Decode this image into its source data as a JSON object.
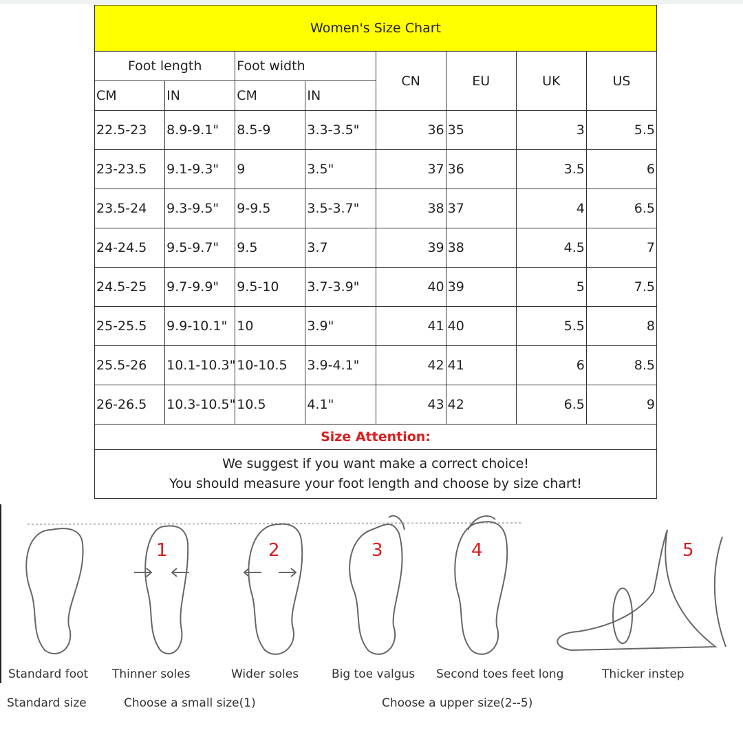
{
  "title": "Women's Size Chart",
  "headers": {
    "foot_length": "Foot length",
    "foot_width": "Foot width",
    "cn": "CN",
    "eu": "EU",
    "uk": "UK",
    "us": "US",
    "cm1": "CM",
    "in1": "IN",
    "cm2": "CM",
    "in2": "IN"
  },
  "rows": [
    [
      "22.5-23",
      "8.9-9.1\"",
      "8.5-9",
      "3.3-3.5\"",
      "36",
      "35",
      "3",
      "5.5"
    ],
    [
      "23-23.5",
      "9.1-9.3\"",
      "9",
      "3.5\"",
      "37",
      "36",
      "3.5",
      "6"
    ],
    [
      "23.5-24",
      "9.3-9.5\"",
      "9-9.5",
      "3.5-3.7\"",
      "38",
      "37",
      "4",
      "6.5"
    ],
    [
      "24-24.5",
      "9.5-9.7\"",
      "9.5",
      "3.7",
      "39",
      "38",
      "4.5",
      "7"
    ],
    [
      "24.5-25",
      "9.7-9.9\"",
      "9.5-10",
      "3.7-3.9\"",
      "40",
      "39",
      "5",
      "7.5"
    ],
    [
      "25-25.5",
      "9.9-10.1\"",
      "10",
      "3.9\"",
      "41",
      "40",
      "5.5",
      "8"
    ],
    [
      "25.5-26",
      "10.1-10.3\"",
      "10-10.5",
      "3.9-4.1\"",
      "42",
      "41",
      "6",
      "8.5"
    ],
    [
      "26-26.5",
      "10.3-10.5\"",
      "10.5",
      "4.1\"",
      "43",
      "42",
      "6.5",
      "9"
    ]
  ],
  "attention": "Size Attention:",
  "message": [
    "We suggest if you want make a correct choice!",
    "You should measure your foot length and choose by size chart!"
  ],
  "feet": [
    {
      "num": "",
      "label": "Standard foot"
    },
    {
      "num": "1",
      "label": "Thinner soles"
    },
    {
      "num": "2",
      "label": "Wider soles"
    },
    {
      "num": "3",
      "label": "Big toe valgus"
    },
    {
      "num": "4",
      "label": "Second toes feet long"
    },
    {
      "num": "5",
      "label": "Thicker instep"
    }
  ],
  "advice": {
    "standard": "Standard size",
    "small": "Choose a small size(1)",
    "upper": "Choose a upper size(2--5)"
  },
  "colors": {
    "title_bg": "#ffff00",
    "attention": "#d81e1e"
  }
}
